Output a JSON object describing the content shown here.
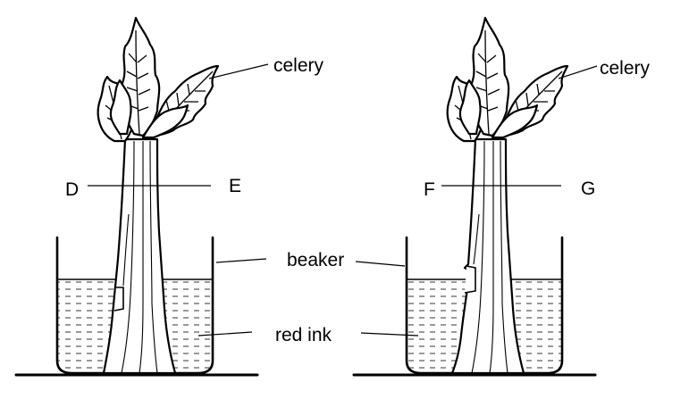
{
  "diagram": {
    "labels": {
      "celery_left": "celery",
      "celery_right": "celery",
      "beaker": "beaker",
      "red_ink": "red ink",
      "point_d": "D",
      "point_e": "E",
      "point_f": "F",
      "point_g": "G"
    }
  }
}
